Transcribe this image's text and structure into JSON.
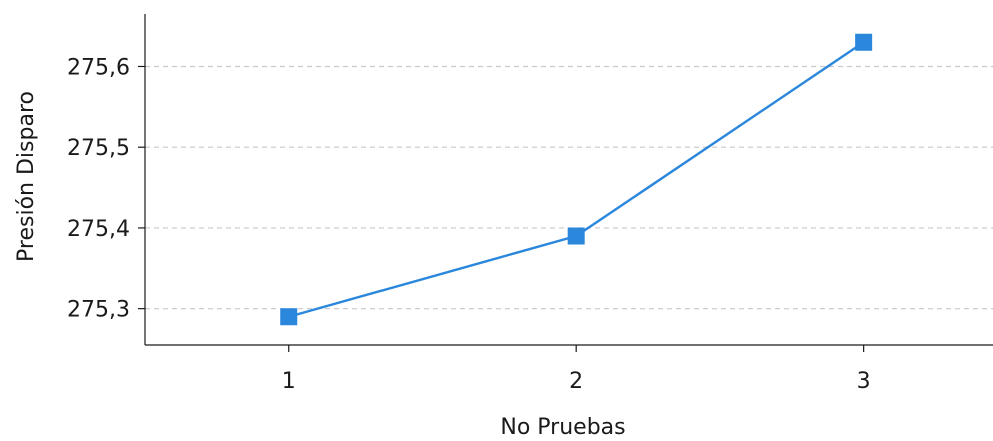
{
  "chart_data": {
    "type": "line",
    "title": "",
    "xlabel": "No Pruebas",
    "ylabel": "Presión Disparo",
    "x": [
      1,
      2,
      3
    ],
    "x_tick_labels": [
      "1",
      "2",
      "3"
    ],
    "series": [
      {
        "values": [
          275.29,
          275.39,
          275.63
        ],
        "color": "#2a87dc",
        "marker": "square"
      }
    ],
    "y_ticks": [
      275.3,
      275.4,
      275.5,
      275.6
    ],
    "y_tick_labels": [
      "275,3",
      "275,4",
      "275,5",
      "275,6"
    ],
    "xlim": [
      0.5,
      3.45
    ],
    "ylim": [
      275.255,
      275.665
    ],
    "grid": "horizontal-dashed",
    "legend": "none"
  }
}
